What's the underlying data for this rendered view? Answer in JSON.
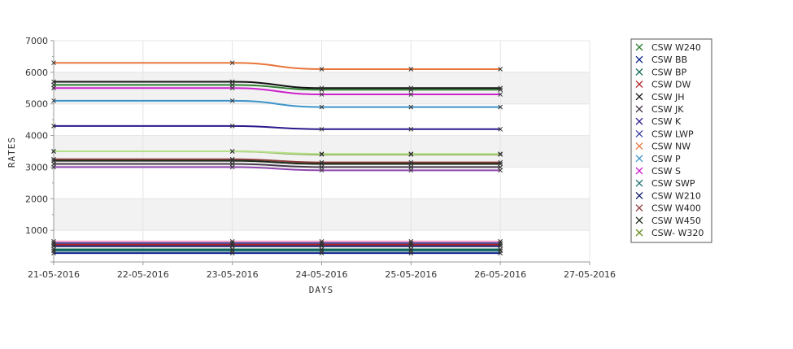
{
  "chart_data": {
    "type": "line",
    "title": "",
    "xlabel": "DAYS",
    "ylabel": "RATES",
    "x_ticks": [
      "21-05-2016",
      "22-05-2016",
      "23-05-2016",
      "24-05-2016",
      "25-05-2016",
      "26-05-2016",
      "27-05-2016"
    ],
    "xlim": [
      "21-05-2016",
      "27-05-2016"
    ],
    "y_ticks": [
      1000,
      2000,
      3000,
      4000,
      5000,
      6000,
      7000
    ],
    "ylim": [
      0,
      7000
    ],
    "grid": true,
    "alternating_bands": true,
    "legend_position": "right",
    "series": [
      {
        "name": "CSW  W240",
        "color": "#2e7d32",
        "marker": "x",
        "x": [
          "21-05-2016",
          "23-05-2016",
          "24-05-2016",
          "25-05-2016",
          "26-05-2016"
        ],
        "values": [
          5600,
          5600,
          5450,
          5450,
          5450
        ]
      },
      {
        "name": "CSW BB",
        "color": "#0d1f8c",
        "marker": "x",
        "x": [
          "21-05-2016",
          "23-05-2016",
          "24-05-2016",
          "25-05-2016",
          "26-05-2016"
        ],
        "values": [
          280,
          280,
          280,
          280,
          280
        ]
      },
      {
        "name": "CSW BP",
        "color": "#0e6655",
        "marker": "x",
        "x": [
          "21-05-2016",
          "23-05-2016",
          "24-05-2016",
          "25-05-2016",
          "26-05-2016"
        ],
        "values": [
          400,
          400,
          400,
          400,
          400
        ]
      },
      {
        "name": "CSW DW",
        "color": "#b22222",
        "marker": "x",
        "x": [
          "21-05-2016",
          "23-05-2016",
          "24-05-2016",
          "25-05-2016",
          "26-05-2016"
        ],
        "values": [
          550,
          550,
          550,
          550,
          550
        ]
      },
      {
        "name": "CSW JH",
        "color": "#111111",
        "marker": "x",
        "x": [
          "21-05-2016",
          "23-05-2016",
          "24-05-2016",
          "25-05-2016",
          "26-05-2016"
        ],
        "values": [
          5700,
          5700,
          5500,
          5500,
          5500
        ]
      },
      {
        "name": "CSW JK",
        "color": "#4a3b4f",
        "marker": "x",
        "x": [
          "21-05-2016",
          "23-05-2016",
          "24-05-2016",
          "25-05-2016",
          "26-05-2016"
        ],
        "values": [
          3100,
          3100,
          3000,
          3000,
          3000
        ]
      },
      {
        "name": "CSW K",
        "color": "#2a1a8c",
        "marker": "x",
        "x": [
          "21-05-2016",
          "23-05-2016",
          "24-05-2016",
          "25-05-2016",
          "26-05-2016"
        ],
        "values": [
          4300,
          4300,
          4200,
          4200,
          4200
        ]
      },
      {
        "name": "CSW LWP",
        "color": "#3a3f9e",
        "marker": "x",
        "x": [
          "21-05-2016",
          "23-05-2016",
          "24-05-2016",
          "25-05-2016",
          "26-05-2016"
        ],
        "values": [
          600,
          600,
          600,
          600,
          600
        ]
      },
      {
        "name": "CSW NW",
        "color": "#e8763a",
        "marker": "x",
        "x": [
          "21-05-2016",
          "23-05-2016",
          "24-05-2016",
          "25-05-2016",
          "26-05-2016"
        ],
        "values": [
          6300,
          6300,
          6100,
          6100,
          6100
        ]
      },
      {
        "name": "CSW P",
        "color": "#3d94c9",
        "marker": "x",
        "x": [
          "21-05-2016",
          "23-05-2016",
          "24-05-2016",
          "25-05-2016",
          "26-05-2016"
        ],
        "values": [
          5100,
          5100,
          4900,
          4900,
          4900
        ]
      },
      {
        "name": "CSW S",
        "color": "#cc22cc",
        "marker": "x",
        "x": [
          "21-05-2016",
          "23-05-2016",
          "24-05-2016",
          "25-05-2016",
          "26-05-2016"
        ],
        "values": [
          5500,
          5500,
          5300,
          5300,
          5300
        ]
      },
      {
        "name": "CSW SWP",
        "color": "#1e6f73",
        "marker": "x",
        "x": [
          "21-05-2016",
          "23-05-2016",
          "24-05-2016",
          "25-05-2016",
          "26-05-2016"
        ],
        "values": [
          350,
          350,
          350,
          350,
          350
        ]
      },
      {
        "name": "CSW W210",
        "color": "#101a6e",
        "marker": "x",
        "x": [
          "21-05-2016",
          "23-05-2016",
          "24-05-2016",
          "25-05-2016",
          "26-05-2016"
        ],
        "values": [
          500,
          500,
          500,
          500,
          500
        ]
      },
      {
        "name": "CSW W400",
        "color": "#8b3a3a",
        "marker": "x",
        "x": [
          "21-05-2016",
          "23-05-2016",
          "24-05-2016",
          "25-05-2016",
          "26-05-2016"
        ],
        "values": [
          3250,
          3250,
          3150,
          3150,
          3150
        ]
      },
      {
        "name": "CSW W450",
        "color": "#1a2a1a",
        "marker": "x",
        "x": [
          "21-05-2016",
          "23-05-2016",
          "24-05-2016",
          "25-05-2016",
          "26-05-2016"
        ],
        "values": [
          3200,
          3200,
          3100,
          3100,
          3100
        ]
      },
      {
        "name": "CSW- W320",
        "color": "#6b8e23",
        "marker": "x",
        "x": [
          "21-05-2016",
          "23-05-2016",
          "24-05-2016",
          "25-05-2016",
          "26-05-2016"
        ],
        "values": [
          3500,
          3500,
          3400,
          3400,
          3400
        ]
      },
      {
        "name": "",
        "color": "#8e44ad",
        "marker": "x",
        "x": [
          "21-05-2016",
          "23-05-2016",
          "24-05-2016",
          "25-05-2016",
          "26-05-2016"
        ],
        "values": [
          3000,
          3000,
          2900,
          2900,
          2900
        ]
      },
      {
        "name": "",
        "color": "#b5e08a",
        "marker": "x",
        "x": [
          "21-05-2016",
          "23-05-2016",
          "24-05-2016",
          "25-05-2016",
          "26-05-2016"
        ],
        "values": [
          3500,
          3500,
          3420,
          3420,
          3420
        ]
      },
      {
        "name": "",
        "color": "#f4a6c8",
        "marker": "x",
        "x": [
          "21-05-2016",
          "23-05-2016",
          "24-05-2016",
          "25-05-2016",
          "26-05-2016"
        ],
        "values": [
          650,
          650,
          650,
          650,
          650
        ]
      }
    ]
  }
}
